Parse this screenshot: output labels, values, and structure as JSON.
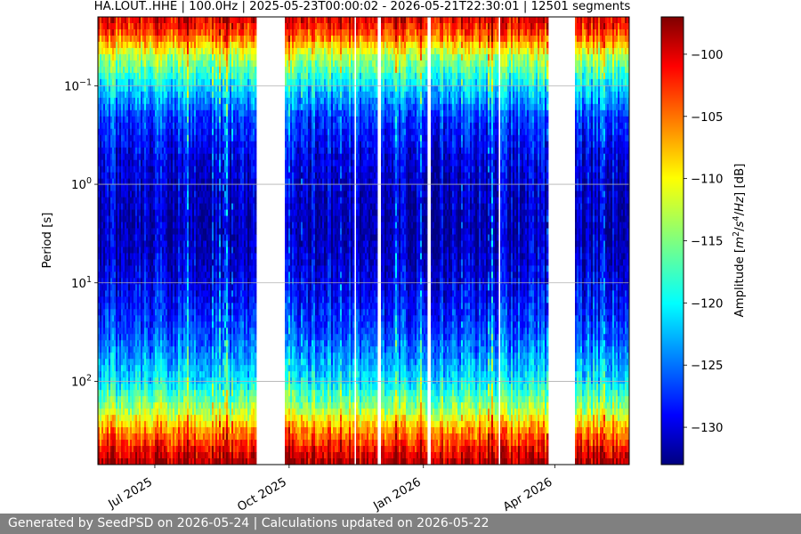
{
  "chart_data": {
    "type": "heatmap",
    "title": "HA.LOUT..HHE | 100.0Hz | 2025-05-23T00:00:02 - 2026-05-21T22:30:01 | 12501 segments",
    "ylabel": "Period [s]",
    "yscale": "log",
    "ylim": [
      0.02,
      700
    ],
    "y_ticks": [
      {
        "value": 0.1,
        "base": "10",
        "exp": "−1"
      },
      {
        "value": 1,
        "base": "10",
        "exp": "0"
      },
      {
        "value": 10,
        "base": "10",
        "exp": "1"
      },
      {
        "value": 100,
        "base": "10",
        "exp": "2"
      }
    ],
    "xlim": [
      "2025-05-23",
      "2026-05-22"
    ],
    "x_ticks": [
      {
        "date": "2025-07-01",
        "label": "Jul 2025"
      },
      {
        "date": "2025-10-01",
        "label": "Oct 2025"
      },
      {
        "date": "2026-01-01",
        "label": "Jan 2026"
      },
      {
        "date": "2026-04-01",
        "label": "Apr 2026"
      }
    ],
    "grid": true,
    "colormap": "jet",
    "colorbar": {
      "label": "Amplitude [m²/s⁴/Hz] [dB]",
      "label_parts": [
        "Amplitude [",
        "m",
        "2",
        "/",
        "s",
        "4",
        "/",
        "Hz",
        "] [dB]"
      ],
      "range": [
        -133,
        -97
      ],
      "ticks": [
        {
          "value": -100,
          "label": "−100"
        },
        {
          "value": -105,
          "label": "−105"
        },
        {
          "value": -110,
          "label": "−110"
        },
        {
          "value": -115,
          "label": "−115"
        },
        {
          "value": -120,
          "label": "−120"
        },
        {
          "value": -125,
          "label": "−125"
        },
        {
          "value": -130,
          "label": "−130"
        }
      ]
    },
    "data_gaps": [
      [
        "2025-09-09",
        "2025-09-28"
      ],
      [
        "2025-11-14",
        "2025-11-16"
      ],
      [
        "2025-12-01",
        "2025-12-03"
      ],
      [
        "2026-01-03",
        "2026-01-06"
      ],
      [
        "2026-02-21",
        "2026-02-23"
      ],
      [
        "2026-03-28",
        "2026-04-02"
      ],
      [
        "2026-04-02",
        "2026-04-15"
      ]
    ],
    "profile": {
      "period": [
        0.02,
        0.03,
        0.05,
        0.1,
        0.2,
        0.5,
        1,
        3,
        10,
        30,
        100,
        200,
        300,
        500,
        700
      ],
      "db": [
        -100,
        -104,
        -113,
        -120,
        -126,
        -129,
        -130,
        -131,
        -129,
        -126,
        -120,
        -113,
        -107,
        -101,
        -98
      ]
    }
  },
  "footer": {
    "text": "Generated by SeedPSD on 2026-05-24 | Calculations updated on 2026-05-22"
  }
}
